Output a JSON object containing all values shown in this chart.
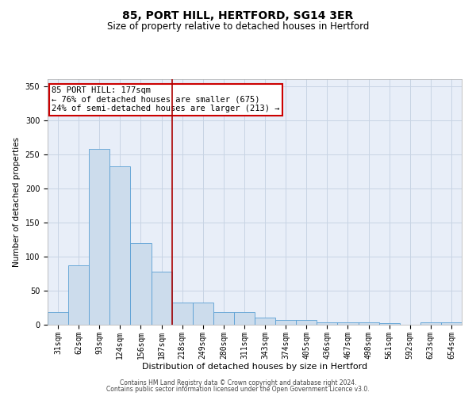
{
  "title1": "85, PORT HILL, HERTFORD, SG14 3ER",
  "title2": "Size of property relative to detached houses in Hertford",
  "xlabel": "Distribution of detached houses by size in Hertford",
  "ylabel": "Number of detached properties",
  "bar_labels": [
    "31sqm",
    "62sqm",
    "93sqm",
    "124sqm",
    "156sqm",
    "187sqm",
    "218sqm",
    "249sqm",
    "280sqm",
    "311sqm",
    "343sqm",
    "374sqm",
    "405sqm",
    "436sqm",
    "467sqm",
    "498sqm",
    "561sqm",
    "592sqm",
    "623sqm",
    "654sqm"
  ],
  "bar_values": [
    19,
    87,
    258,
    232,
    120,
    78,
    32,
    32,
    19,
    19,
    10,
    7,
    7,
    4,
    4,
    3,
    2,
    0,
    3,
    3
  ],
  "bar_color": "#ccdcec",
  "bar_edgecolor": "#5a9fd4",
  "grid_color": "#c8d4e4",
  "background_color": "#e8eef8",
  "vline_x": 5.5,
  "vline_color": "#aa0000",
  "annotation_line1": "85 PORT HILL: 177sqm",
  "annotation_line2": "← 76% of detached houses are smaller (675)",
  "annotation_line3": "24% of semi-detached houses are larger (213) →",
  "annotation_box_edgecolor": "#cc0000",
  "ylim": [
    0,
    360
  ],
  "yticks": [
    0,
    50,
    100,
    150,
    200,
    250,
    300,
    350
  ],
  "footer_line1": "Contains HM Land Registry data © Crown copyright and database right 2024.",
  "footer_line2": "Contains public sector information licensed under the Open Government Licence v3.0.",
  "title1_fontsize": 10,
  "title2_fontsize": 8.5,
  "xlabel_fontsize": 8,
  "ylabel_fontsize": 7.5,
  "tick_fontsize": 7,
  "annot_fontsize": 7.5,
  "footer_fontsize": 5.5
}
